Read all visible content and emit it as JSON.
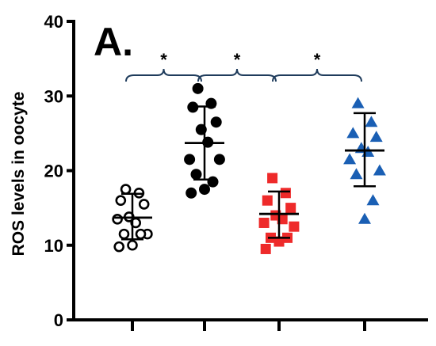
{
  "chart_data": {
    "type": "scatter",
    "panel_label": "A.",
    "ylabel": "ROS levels in oocyte",
    "xlabel": "",
    "ylim": [
      0,
      40
    ],
    "yticks": [
      0,
      10,
      20,
      30,
      40
    ],
    "grid": false,
    "categories": [
      "",
      "",
      "",
      ""
    ],
    "series": [
      {
        "marker": "circle-open",
        "color": "#000000",
        "values": [
          17.5,
          17.0,
          16.0,
          15.5,
          13.8,
          13.0,
          13.5,
          11.5,
          11.5,
          11.5,
          10.0,
          9.8
        ],
        "mean": 13.7,
        "sd_upper": 16.9,
        "sd_lower": 10.8
      },
      {
        "marker": "circle-filled",
        "color": "#000000",
        "values": [
          31.0,
          29.0,
          28.5,
          26.5,
          25.5,
          23.8,
          21.5,
          21.5,
          19.5,
          18.5,
          17.5,
          17.0
        ],
        "mean": 23.7,
        "sd_upper": 28.6,
        "sd_lower": 18.8
      },
      {
        "marker": "square-filled",
        "color": "#ee2a2a",
        "values": [
          19.0,
          17.0,
          16.0,
          15.0,
          14.0,
          13.5,
          13.0,
          12.5,
          11.0,
          11.0,
          10.5,
          9.5
        ],
        "mean": 14.2,
        "sd_upper": 17.2,
        "sd_lower": 11.0
      },
      {
        "marker": "triangle-filled",
        "color": "#1a5fb4",
        "values": [
          29.0,
          26.5,
          25.0,
          24.5,
          23.0,
          22.5,
          21.5,
          20.0,
          19.5,
          16.0,
          13.5
        ],
        "mean": 22.7,
        "sd_upper": 27.7,
        "sd_lower": 17.9
      }
    ],
    "annotations": [
      {
        "text": "*",
        "from": 0,
        "to": 1
      },
      {
        "text": "*",
        "from": 1,
        "to": 2
      },
      {
        "text": "*",
        "from": 2,
        "to": 3
      }
    ]
  }
}
